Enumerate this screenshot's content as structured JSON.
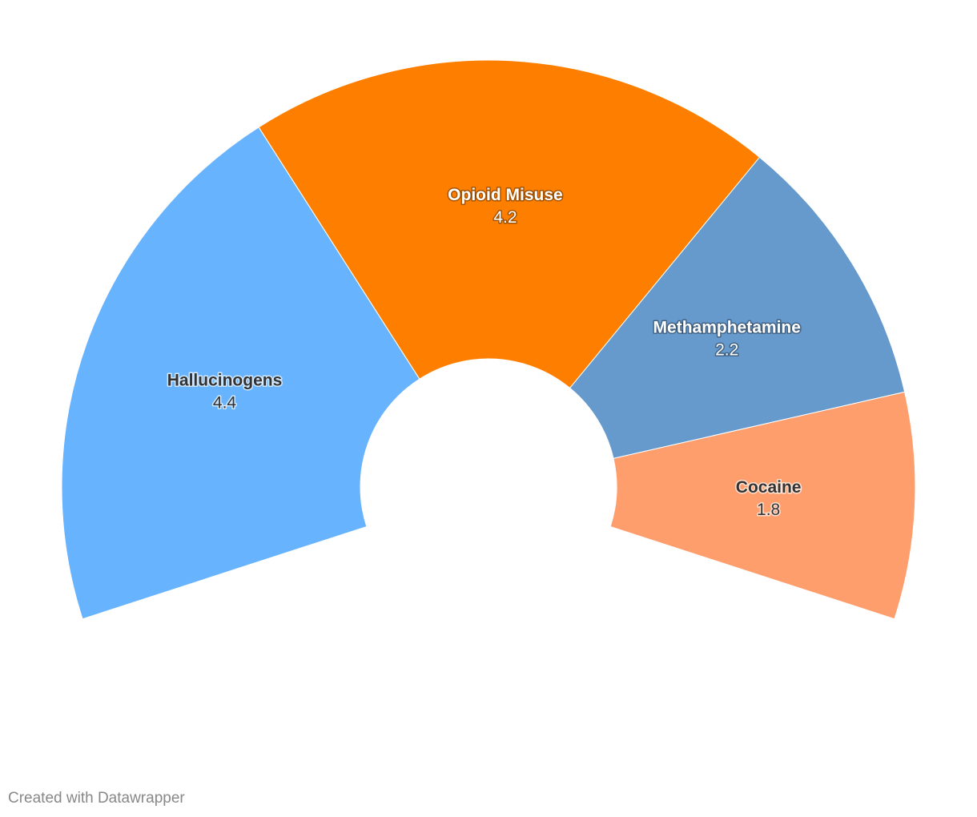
{
  "chart_data": {
    "type": "donut",
    "categories": [
      "Hallucinogens",
      "Opioid Misuse",
      "Methamphetamine",
      "Cocaine"
    ],
    "values": [
      4.4,
      4.2,
      2.2,
      1.8
    ],
    "colors": [
      "#67b3fd",
      "#fe7f00",
      "#6699cc",
      "#ff9e6d"
    ],
    "credit": "Created with Datawrapper"
  }
}
